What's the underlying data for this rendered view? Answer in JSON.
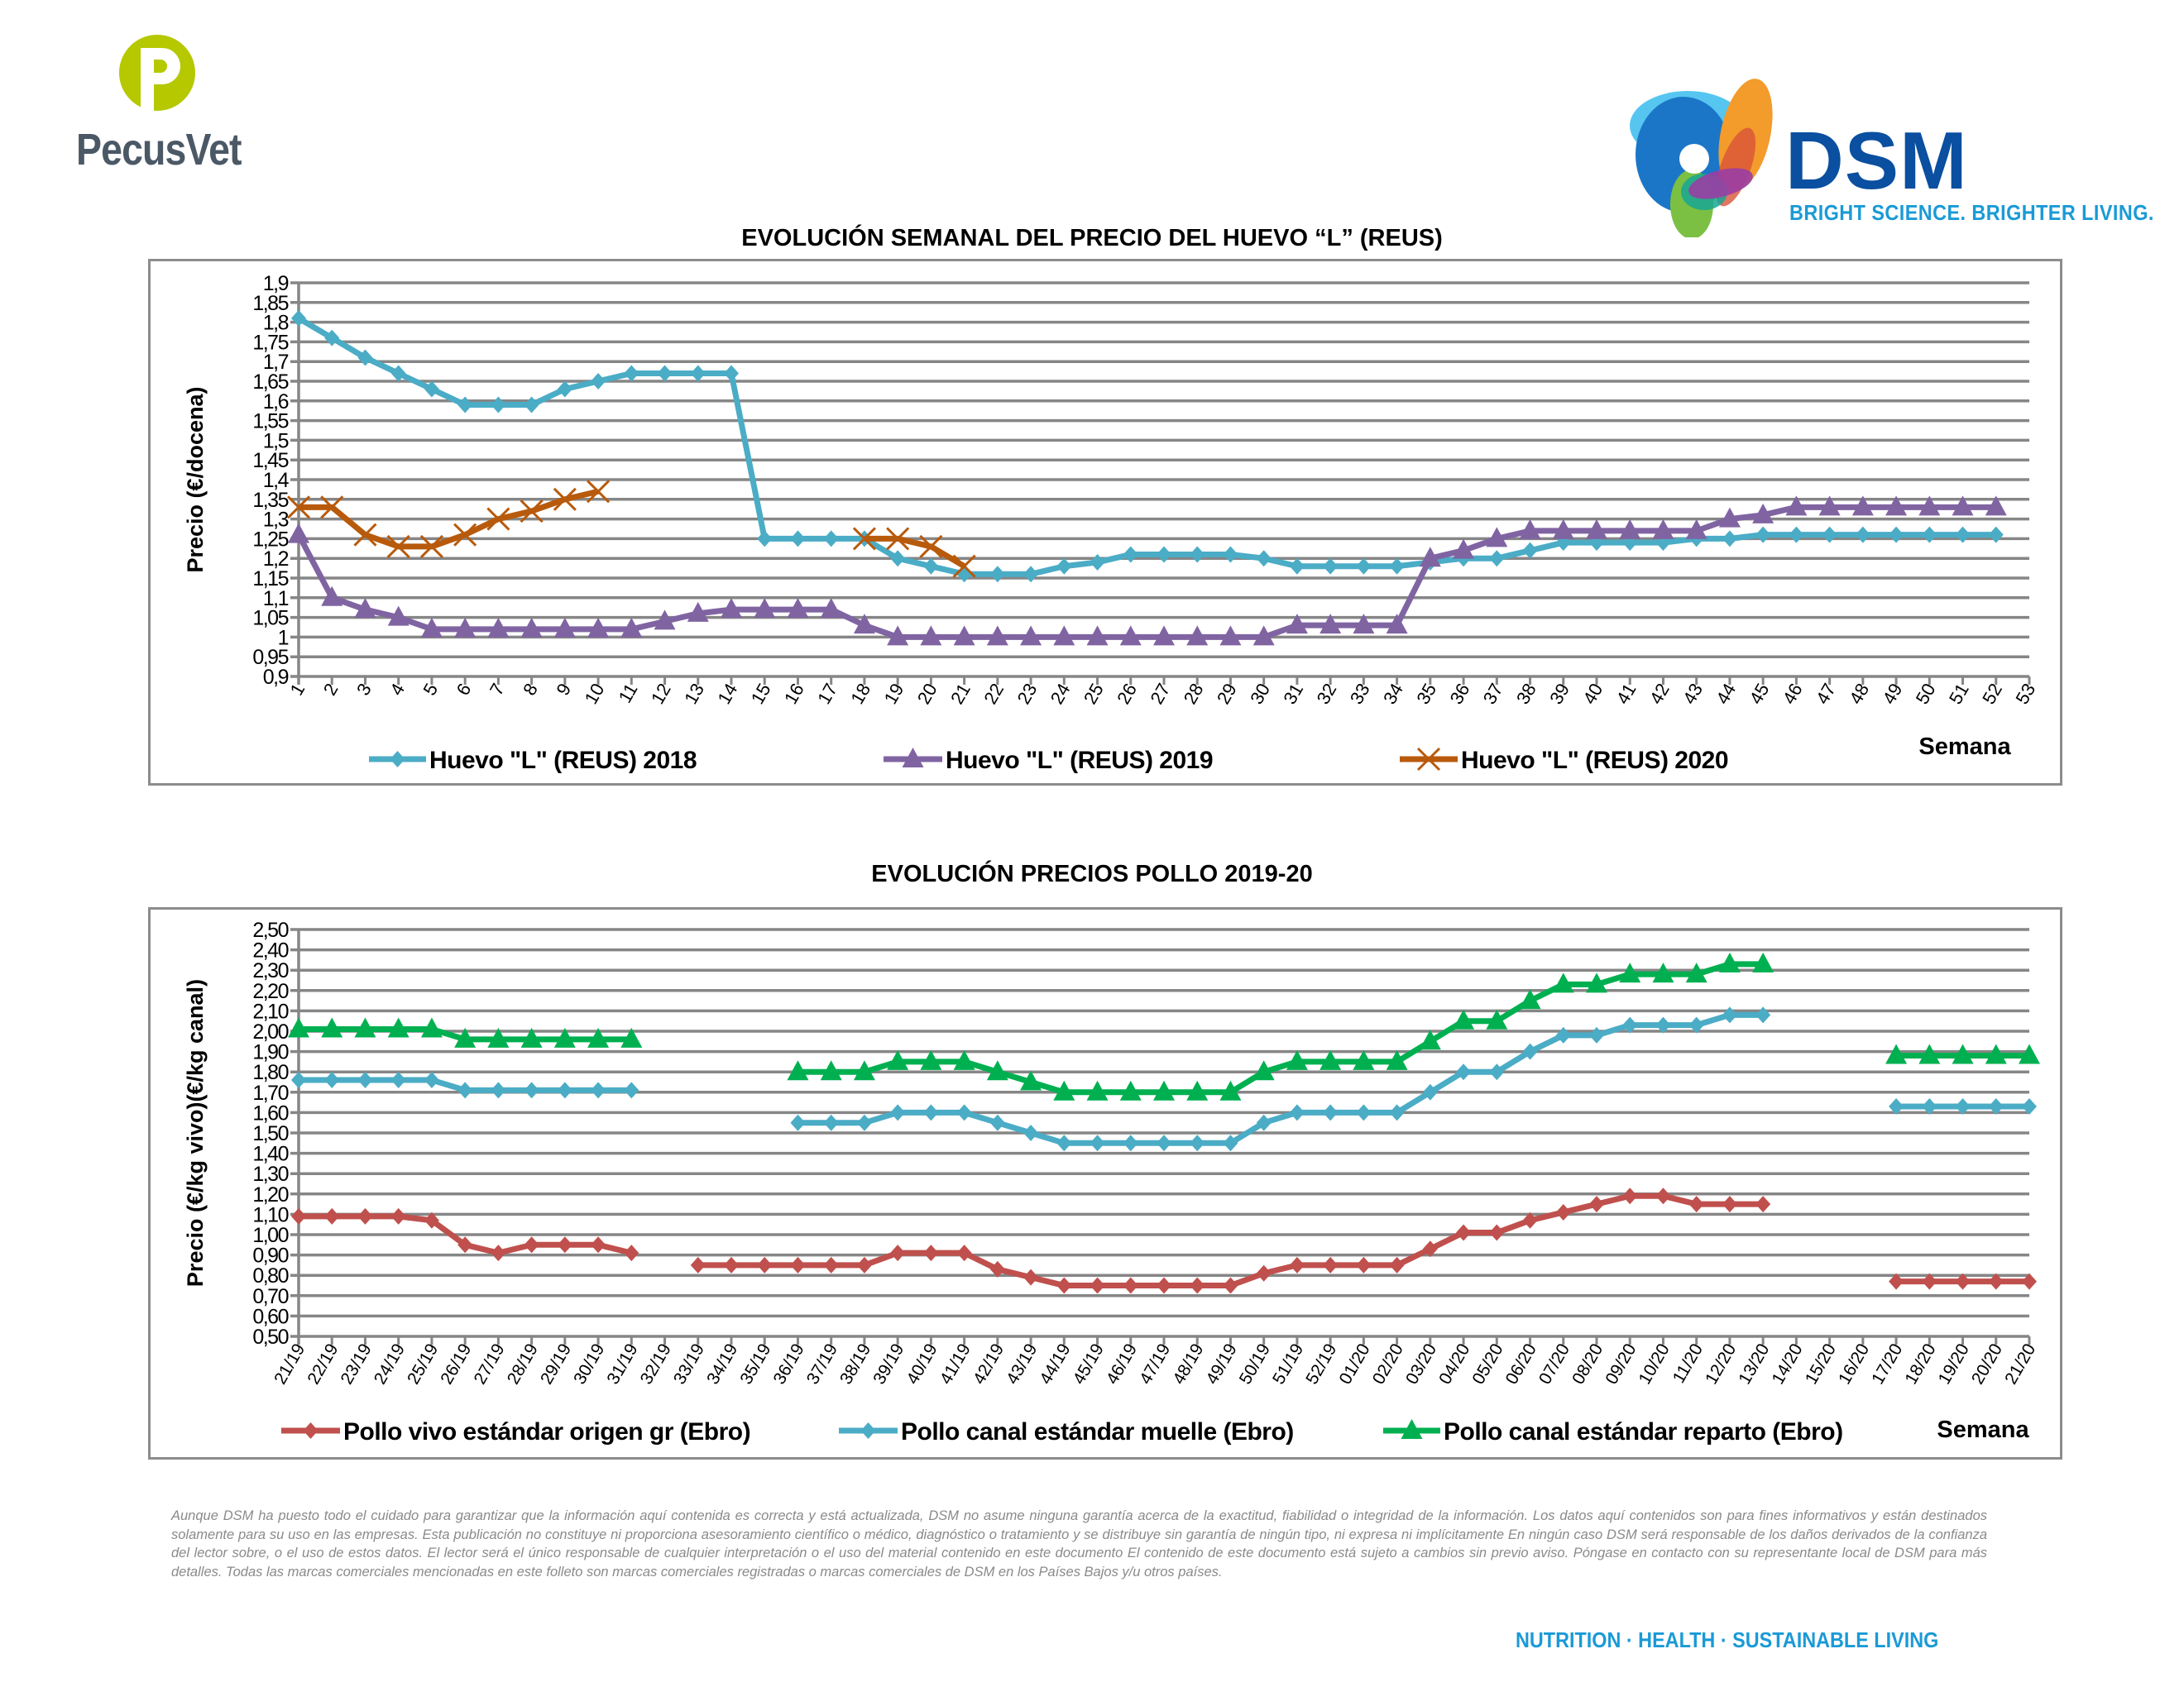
{
  "header": {
    "left_logo": {
      "name": "PecusVet",
      "icon": "pecusvet-p-logo-icon",
      "color": "#b5c800"
    },
    "right_logo": {
      "name": "DSM",
      "tagline": "BRIGHT SCIENCE. BRIGHTER LIVING.",
      "icon": "dsm-swirl-logo-icon",
      "color": "#0a4fa0"
    }
  },
  "chart_data": [
    {
      "type": "line",
      "title": "EVOLUCIÓN SEMANAL DEL PRECIO DEL HUEVO “L” (REUS)",
      "xlabel": "Semana",
      "ylabel": "Precio (€/docena)",
      "ylim": [
        0.9,
        1.9
      ],
      "yticks": [
        "0,9",
        "0,95",
        "1",
        "1,05",
        "1,1",
        "1,15",
        "1,2",
        "1,25",
        "1,3",
        "1,35",
        "1,4",
        "1,45",
        "1,5",
        "1,55",
        "1,6",
        "1,65",
        "1,7",
        "1,75",
        "1,8",
        "1,85",
        "1,9"
      ],
      "grid": true,
      "legend": "bottom",
      "categories": [
        "1",
        "2",
        "3",
        "4",
        "5",
        "6",
        "7",
        "8",
        "9",
        "10",
        "11",
        "12",
        "13",
        "14",
        "15",
        "16",
        "17",
        "18",
        "19",
        "20",
        "21",
        "22",
        "23",
        "24",
        "25",
        "26",
        "27",
        "28",
        "29",
        "30",
        "31",
        "32",
        "33",
        "34",
        "35",
        "36",
        "37",
        "38",
        "39",
        "40",
        "41",
        "42",
        "43",
        "44",
        "45",
        "46",
        "47",
        "48",
        "49",
        "50",
        "51",
        "52",
        "53"
      ],
      "series": [
        {
          "name": "Huevo \"L\" (REUS) 2018",
          "color": "#4bacc6",
          "marker": "diamond",
          "values": [
            1.81,
            1.76,
            1.71,
            1.67,
            1.63,
            1.59,
            1.59,
            1.59,
            1.63,
            1.65,
            1.67,
            1.67,
            1.67,
            1.67,
            1.25,
            1.25,
            1.25,
            1.25,
            1.2,
            1.18,
            1.16,
            1.16,
            1.16,
            1.18,
            1.19,
            1.21,
            1.21,
            1.21,
            1.21,
            1.2,
            1.18,
            1.18,
            1.18,
            1.18,
            1.19,
            1.2,
            1.2,
            1.22,
            1.24,
            1.24,
            1.24,
            1.24,
            1.25,
            1.25,
            1.26,
            1.26,
            1.26,
            1.26,
            1.26,
            1.26,
            1.26,
            1.26,
            null
          ]
        },
        {
          "name": "Huevo \"L\" (REUS) 2019",
          "color": "#8064a2",
          "marker": "triangle",
          "values": [
            1.26,
            1.1,
            1.07,
            1.05,
            1.02,
            1.02,
            1.02,
            1.02,
            1.02,
            1.02,
            1.02,
            1.04,
            1.06,
            1.07,
            1.07,
            1.07,
            1.07,
            1.03,
            1.0,
            1.0,
            1.0,
            1.0,
            1.0,
            1.0,
            1.0,
            1.0,
            1.0,
            1.0,
            1.0,
            1.0,
            1.03,
            1.03,
            1.03,
            1.03,
            1.2,
            1.22,
            1.25,
            1.27,
            1.27,
            1.27,
            1.27,
            1.27,
            1.27,
            1.3,
            1.31,
            1.33,
            1.33,
            1.33,
            1.33,
            1.33,
            1.33,
            1.33,
            null
          ]
        },
        {
          "name": "Huevo \"L\" (REUS) 2020",
          "color": "#b85a0c",
          "marker": "x",
          "values": [
            1.33,
            1.33,
            1.26,
            1.23,
            1.23,
            1.26,
            1.3,
            1.32,
            1.35,
            1.37,
            null,
            null,
            null,
            null,
            null,
            null,
            null,
            1.25,
            1.25,
            1.23,
            1.18,
            null,
            null,
            null,
            null,
            null,
            null,
            null,
            null,
            null,
            null,
            null,
            null,
            null,
            null,
            null,
            null,
            null,
            null,
            null,
            null,
            null,
            null,
            null,
            null,
            null,
            null,
            null,
            null,
            null,
            null,
            null,
            null
          ]
        }
      ]
    },
    {
      "type": "line",
      "title": "EVOLUCIÓN PRECIOS POLLO 2019-20",
      "xlabel": "Semana",
      "ylabel": "Precio (€/kg vivo)(€/kg canal)",
      "ylim": [
        0.5,
        2.5
      ],
      "yticks": [
        "0,50",
        "0,60",
        "0,70",
        "0,80",
        "0,90",
        "1,00",
        "1,10",
        "1,20",
        "1,30",
        "1,40",
        "1,50",
        "1,60",
        "1,70",
        "1,80",
        "1,90",
        "2,00",
        "2,10",
        "2,20",
        "2,30",
        "2,40",
        "2,50"
      ],
      "grid": true,
      "legend": "bottom",
      "categories": [
        "21/19",
        "22/19",
        "23/19",
        "24/19",
        "25/19",
        "26/19",
        "27/19",
        "28/19",
        "29/19",
        "30/19",
        "31/19",
        "32/19",
        "33/19",
        "34/19",
        "35/19",
        "36/19",
        "37/19",
        "38/19",
        "39/19",
        "40/19",
        "41/19",
        "42/19",
        "43/19",
        "44/19",
        "45/19",
        "46/19",
        "47/19",
        "48/19",
        "49/19",
        "50/19",
        "51/19",
        "52/19",
        "01/20",
        "02/20",
        "03/20",
        "04/20",
        "05/20",
        "06/20",
        "07/20",
        "08/20",
        "09/20",
        "10/20",
        "11/20",
        "12/20",
        "13/20",
        "14/20",
        "15/20",
        "16/20",
        "17/20",
        "18/20",
        "19/20",
        "20/20",
        "21/20"
      ],
      "series": [
        {
          "name": "Pollo vivo estándar origen gr (Ebro)",
          "color": "#c0504d",
          "marker": "diamond",
          "values": [
            1.09,
            1.09,
            1.09,
            1.09,
            1.07,
            0.95,
            0.91,
            0.95,
            0.95,
            0.95,
            0.91,
            null,
            0.85,
            0.85,
            0.85,
            0.85,
            0.85,
            0.85,
            0.91,
            0.91,
            0.91,
            0.83,
            0.79,
            0.75,
            0.75,
            0.75,
            0.75,
            0.75,
            0.75,
            0.81,
            0.85,
            0.85,
            0.85,
            0.85,
            0.93,
            1.01,
            1.01,
            1.07,
            1.11,
            1.15,
            1.19,
            1.19,
            1.15,
            1.15,
            1.15,
            null,
            null,
            null,
            0.77,
            0.77,
            0.77,
            0.77,
            0.77
          ]
        },
        {
          "name": "Pollo canal estándar muelle (Ebro)",
          "color": "#4bacc6",
          "marker": "diamond",
          "values": [
            1.76,
            1.76,
            1.76,
            1.76,
            1.76,
            1.71,
            1.71,
            1.71,
            1.71,
            1.71,
            1.71,
            null,
            null,
            null,
            null,
            1.55,
            1.55,
            1.55,
            1.6,
            1.6,
            1.6,
            1.55,
            1.5,
            1.45,
            1.45,
            1.45,
            1.45,
            1.45,
            1.45,
            1.55,
            1.6,
            1.6,
            1.6,
            1.6,
            1.7,
            1.8,
            1.8,
            1.9,
            1.98,
            1.98,
            2.03,
            2.03,
            2.03,
            2.08,
            2.08,
            null,
            null,
            null,
            1.63,
            1.63,
            1.63,
            1.63,
            1.63
          ]
        },
        {
          "name": "Pollo canal estándar reparto (Ebro)",
          "color": "#00b050",
          "marker": "triangle",
          "values": [
            2.01,
            2.01,
            2.01,
            2.01,
            2.01,
            1.96,
            1.96,
            1.96,
            1.96,
            1.96,
            1.96,
            null,
            null,
            null,
            null,
            1.8,
            1.8,
            1.8,
            1.85,
            1.85,
            1.85,
            1.8,
            1.75,
            1.7,
            1.7,
            1.7,
            1.7,
            1.7,
            1.7,
            1.8,
            1.85,
            1.85,
            1.85,
            1.85,
            1.95,
            2.05,
            2.05,
            2.15,
            2.23,
            2.23,
            2.28,
            2.28,
            2.28,
            2.33,
            2.33,
            null,
            null,
            null,
            1.88,
            1.88,
            1.88,
            1.88,
            1.88
          ]
        }
      ]
    }
  ],
  "disclaimer": "Aunque DSM ha puesto todo el cuidado para garantizar que la información aquí contenida es correcta y está actualizada, DSM no asume ninguna garantía acerca de la exactitud, fiabilidad o integridad de la información. Los datos aquí contenidos son para fines informativos y están destinados solamente para su uso en las empresas. Esta publicación no constituye ni proporciona asesoramiento científico o médico, diagnóstico o tratamiento y se distribuye sin garantía de ningún tipo, ni expresa ni implícitamente En ningún caso DSM será responsable de los daños derivados de la confianza del lector sobre, o el uso de estos datos. El lector será el único responsable de cualquier interpretación o el uso del material contenido en este documento El contenido de este documento está sujeto a cambios sin previo aviso. Póngase en contacto con su representante local de DSM para más detalles. Todas las marcas comerciales mencionadas en este folleto son marcas comerciales registradas o marcas comerciales de DSM en los Países Bajos y/u otros países.",
  "footer": "NUTRITION · HEALTH · SUSTAINABLE LIVING"
}
